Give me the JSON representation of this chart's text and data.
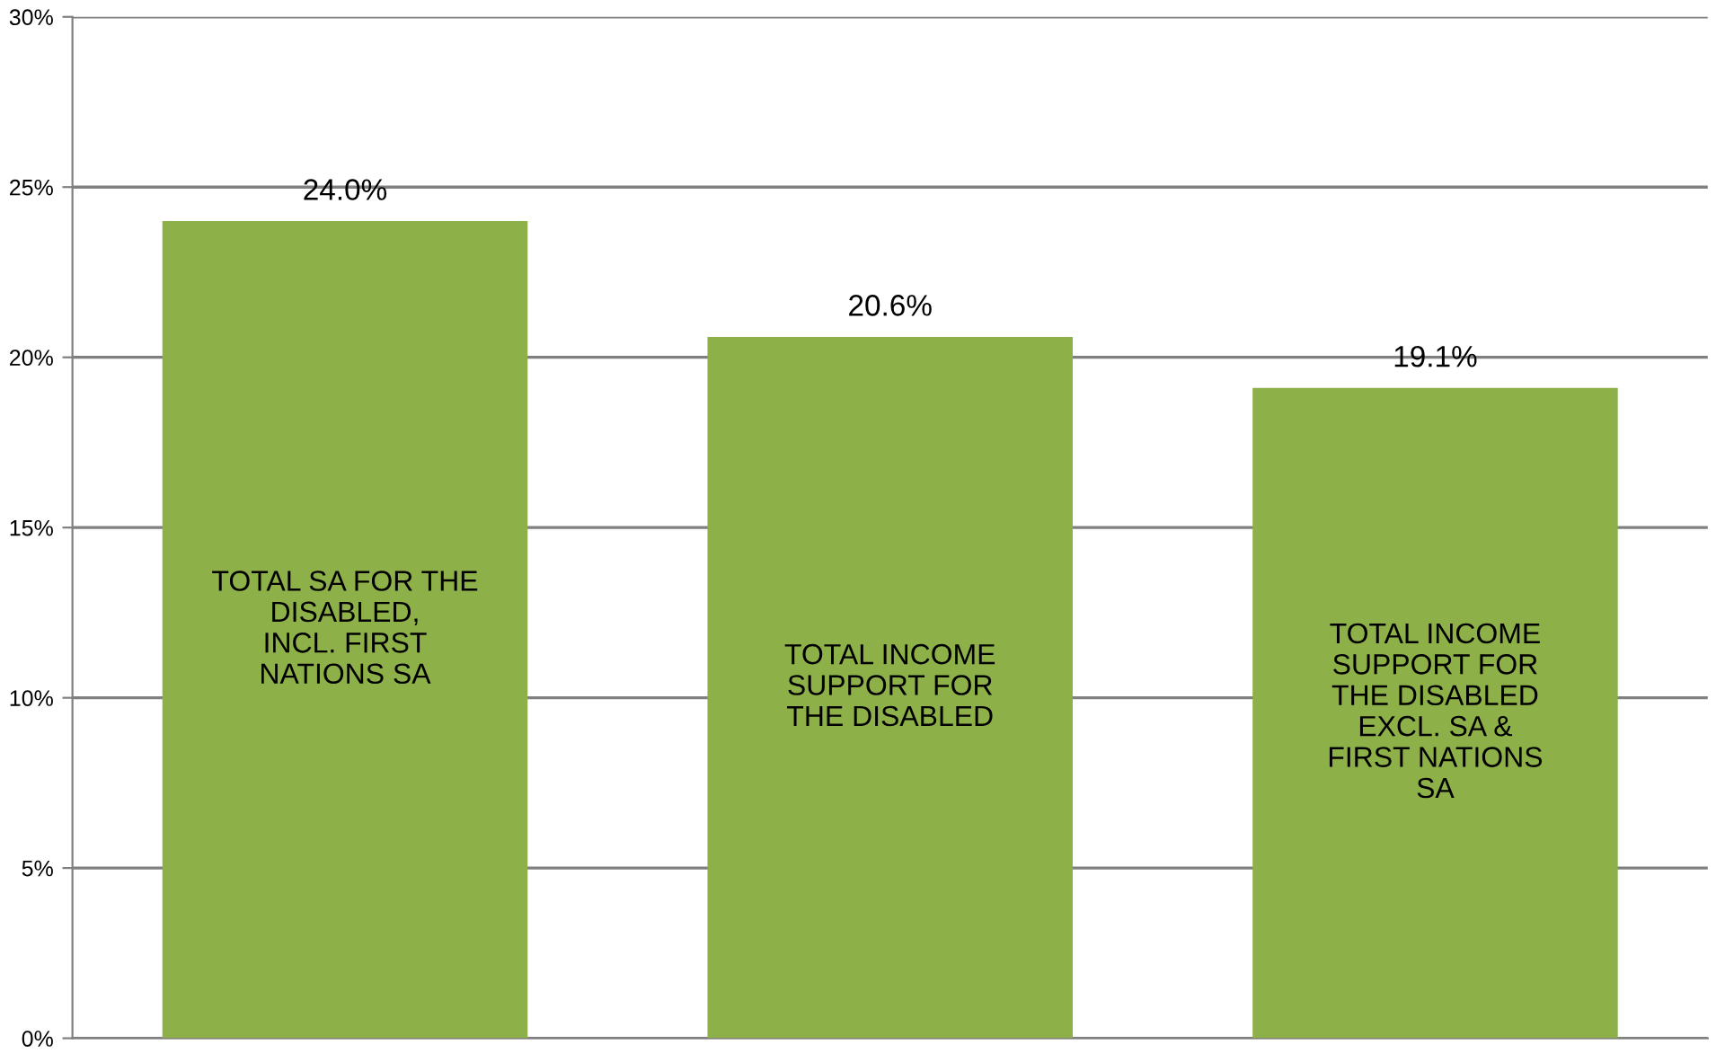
{
  "chart_data": {
    "type": "bar",
    "categories": [
      "TOTAL SA FOR THE\nDISABLED,\nINCL. FIRST\nNATIONS SA",
      "TOTAL INCOME\nSUPPORT FOR\nTHE DISABLED",
      "TOTAL INCOME\nSUPPORT FOR\nTHE DISABLED\nEXCL. SA &\nFIRST NATIONS\nSA"
    ],
    "values": [
      24.0,
      20.6,
      19.1
    ],
    "value_labels": [
      "24.0%",
      "20.6%",
      "19.1%"
    ],
    "color": "#8db048",
    "ylim": [
      0,
      30
    ],
    "yticks": [
      {
        "value": 0,
        "label": "0%"
      },
      {
        "value": 5,
        "label": "5%"
      },
      {
        "value": 10,
        "label": "10%"
      },
      {
        "value": 15,
        "label": "15%"
      },
      {
        "value": 20,
        "label": "20%"
      },
      {
        "value": 25,
        "label": "25%"
      },
      {
        "value": 30,
        "label": "30%"
      }
    ],
    "grid": "y",
    "legend": false
  }
}
